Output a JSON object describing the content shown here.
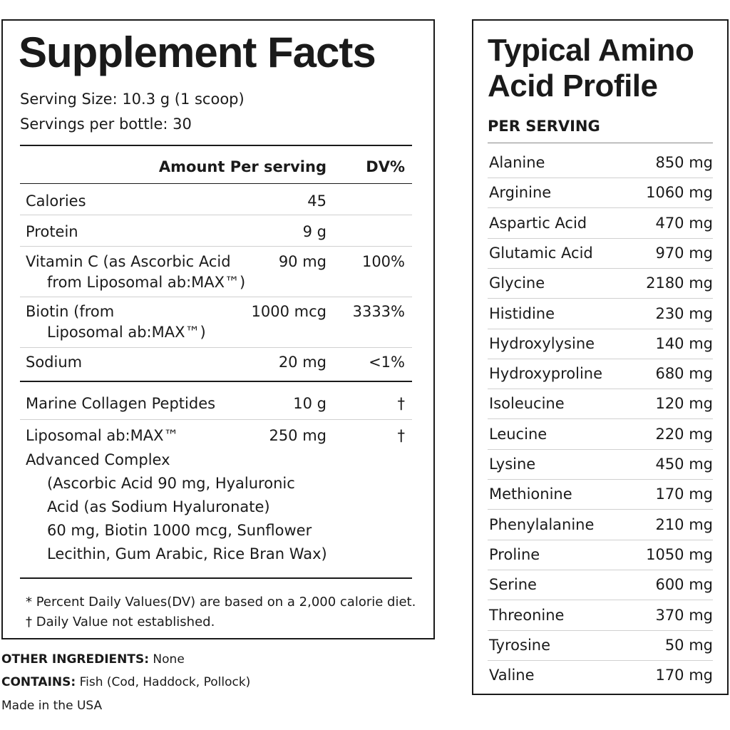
{
  "supplement_facts": {
    "title": "Supplement Facts",
    "serving_size": "Serving Size: 10.3 g (1 scoop)",
    "servings_per": "Servings per bottle: 30",
    "header_amount": "Amount Per serving",
    "header_dv": "DV%",
    "rows": [
      {
        "name": "Calories",
        "amount": "45",
        "dv": ""
      },
      {
        "name": "Protein",
        "amount": "9 g",
        "dv": ""
      },
      {
        "name_line1": "Vitamin C  (as Ascorbic Acid",
        "name_line2": "from Liposomal ab:MAX™)",
        "amount": "90 mg",
        "dv": "100%"
      },
      {
        "name_line1": "Biotin (from",
        "name_line2": "Liposomal ab:MAX™)",
        "amount": "1000 mcg",
        "dv": "3333%"
      },
      {
        "name": "Sodium",
        "amount": "20 mg",
        "dv": "<1%"
      },
      {
        "name": "Marine Collagen Peptides",
        "amount": "10 g",
        "dv": "†"
      },
      {
        "name_line1": "Liposomal ab:MAX™",
        "name_line2": "Advanced Complex",
        "amount": "250 mg",
        "dv": "†",
        "detail": [
          "(Ascorbic Acid 90 mg, Hyaluronic",
          "Acid (as Sodium Hyaluronate)",
          "60 mg, Biotin 1000 mcg, Sunflower",
          "Lecithin, Gum Arabic, Rice Bran Wax)"
        ]
      }
    ],
    "footnote1": "* Percent Daily Values(DV) are based on a 2,000 calorie diet.",
    "footnote2": "† Daily Value not established."
  },
  "other_ingredients": {
    "label": "OTHER INGREDIENTS:",
    "value": " None"
  },
  "contains": {
    "label": "CONTAINS:",
    "value": " Fish (Cod, Haddock, Pollock)"
  },
  "made_in": "Made in the USA",
  "amino": {
    "title_line1": "Typical Amino",
    "title_line2": "Acid Profile",
    "per_serving": "PER SERVING",
    "rows": [
      {
        "name": "Alanine",
        "amount": "850 mg"
      },
      {
        "name": "Arginine",
        "amount": "1060 mg"
      },
      {
        "name": "Aspartic Acid",
        "amount": "470 mg"
      },
      {
        "name": "Glutamic Acid",
        "amount": "970 mg"
      },
      {
        "name": "Glycine",
        "amount": "2180 mg"
      },
      {
        "name": "Histidine",
        "amount": "230 mg"
      },
      {
        "name": "Hydroxylysine",
        "amount": "140 mg"
      },
      {
        "name": "Hydroxyproline",
        "amount": "680 mg"
      },
      {
        "name": "Isoleucine",
        "amount": "120 mg"
      },
      {
        "name": "Leucine",
        "amount": "220 mg"
      },
      {
        "name": "Lysine",
        "amount": "450 mg"
      },
      {
        "name": "Methionine",
        "amount": "170 mg"
      },
      {
        "name": "Phenylalanine",
        "amount": "210 mg"
      },
      {
        "name": "Proline",
        "amount": "1050 mg"
      },
      {
        "name": "Serine",
        "amount": "600 mg"
      },
      {
        "name": "Threonine",
        "amount": "370 mg"
      },
      {
        "name": "Tyrosine",
        "amount": "50 mg"
      },
      {
        "name": "Valine",
        "amount": "170 mg"
      }
    ]
  }
}
